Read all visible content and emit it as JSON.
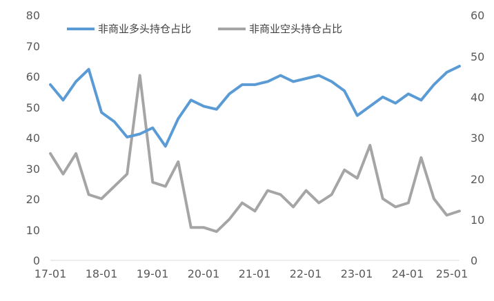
{
  "chart_data": {
    "type": "line",
    "title": "",
    "xlabel": "",
    "ylabel": "",
    "ylim_left": [
      0,
      80
    ],
    "ylim_right": [
      0,
      60
    ],
    "left_ticks": [
      "0",
      "10",
      "20",
      "30",
      "40",
      "50",
      "60",
      "70",
      "80"
    ],
    "right_ticks": [
      "0",
      "10",
      "20",
      "30",
      "40",
      "50",
      "60"
    ],
    "x_ticks": [
      "17-01",
      "18-01",
      "19-01",
      "20-01",
      "21-01",
      "22-01",
      "23-01",
      "24-01",
      "25-01"
    ],
    "x": [
      "17-01",
      "17-04",
      "17-07",
      "17-10",
      "18-01",
      "18-04",
      "18-07",
      "18-10",
      "19-01",
      "19-04",
      "19-07",
      "19-10",
      "20-01",
      "20-04",
      "20-07",
      "20-10",
      "21-01",
      "21-04",
      "21-07",
      "21-10",
      "22-01",
      "22-04",
      "22-07",
      "22-10",
      "23-01",
      "23-04",
      "23-07",
      "23-10",
      "24-01",
      "24-04",
      "24-07",
      "24-10",
      "25-01"
    ],
    "series": [
      {
        "name": "非商业多头持仓占比",
        "axis": "left",
        "color": "#5B9BD5",
        "values": [
          57,
          52,
          58,
          62,
          48,
          45,
          40,
          41,
          43,
          37,
          46,
          52,
          50,
          49,
          54,
          57,
          57,
          58,
          60,
          58,
          59,
          60,
          58,
          55,
          47,
          50,
          53,
          51,
          54,
          52,
          57,
          61,
          63
        ]
      },
      {
        "name": "非商业空头持仓占比",
        "axis": "right",
        "color": "#A5A5A5",
        "values": [
          26,
          21,
          26,
          16,
          15,
          18,
          21,
          45,
          19,
          18,
          24,
          8,
          8,
          7,
          10,
          14,
          12,
          17,
          16,
          13,
          17,
          14,
          16,
          22,
          20,
          28,
          15,
          13,
          14,
          25,
          15,
          11,
          12
        ]
      }
    ],
    "legend": "top-left",
    "grid": false
  }
}
